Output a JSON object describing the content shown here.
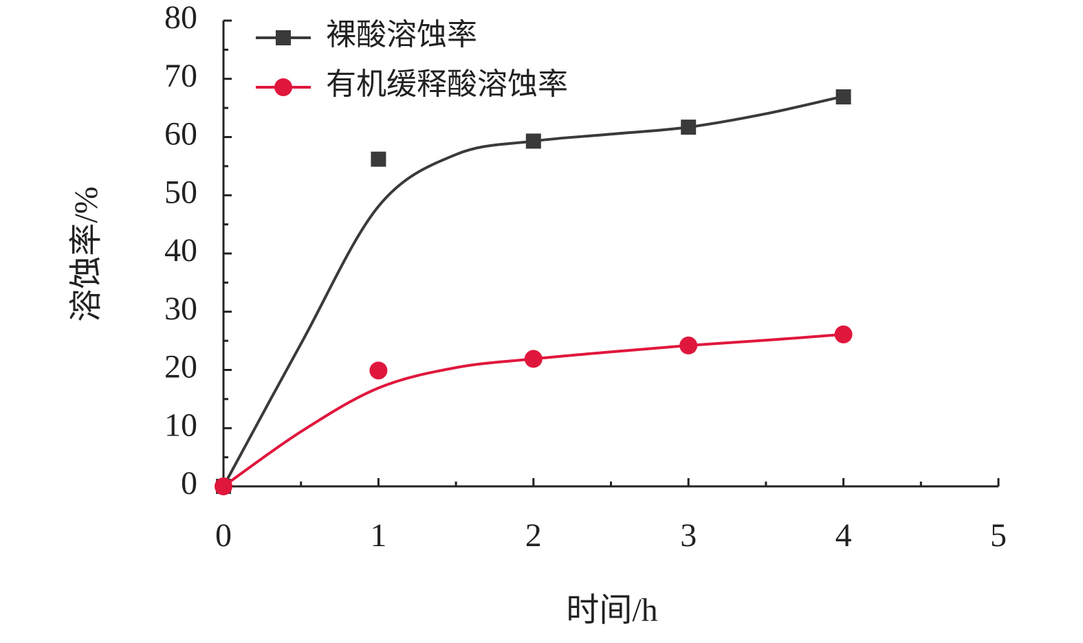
{
  "chart_data": {
    "type": "line",
    "x_label": "时间/h",
    "y_label": "溶蚀率/%",
    "x": [
      0,
      1,
      2,
      3,
      4
    ],
    "series": [
      {
        "name": "裸酸溶蚀率",
        "color": "#3a3a3a",
        "marker": "square",
        "values": [
          0,
          56.2,
          59.3,
          61.7,
          66.9
        ],
        "fit": {
          "x": [
            0,
            0.5,
            1,
            1.5,
            2,
            2.5,
            3,
            3.5,
            4
          ],
          "values": [
            0,
            24.5,
            48.1,
            57,
            59.3,
            60.5,
            61.7,
            64,
            67
          ]
        }
      },
      {
        "name": "有机缓释酸溶蚀率",
        "color": "#e0173d",
        "marker": "circle",
        "values": [
          0,
          19.9,
          21.9,
          24.2,
          26.1
        ],
        "fit": {
          "x": [
            0,
            0.5,
            1,
            1.5,
            2,
            2.5,
            3,
            3.5,
            4
          ],
          "values": [
            0,
            9.4,
            16.9,
            20.4,
            21.9,
            23.1,
            24.2,
            25.1,
            26.1
          ]
        }
      }
    ],
    "xlim": [
      0,
      5
    ],
    "xticks": [
      0,
      1,
      2,
      3,
      4,
      5
    ],
    "xminor_ticks": [
      0.5,
      1.5,
      2.5,
      3.5,
      4.5
    ],
    "ylim": [
      0,
      80
    ],
    "yticks": [
      0,
      10,
      20,
      30,
      40,
      50,
      60,
      70,
      80
    ],
    "yminor_ticks": [
      5,
      15,
      25,
      35,
      45,
      55,
      65,
      75
    ],
    "legend": "top-left"
  }
}
